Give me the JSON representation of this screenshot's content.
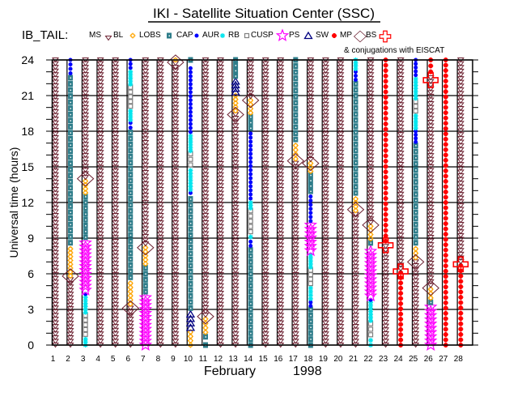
{
  "header": {
    "title": "IKI - Satellite Situation Center (SSC)",
    "satellite_label": "IB_TAIL:",
    "conjugation_note": "& conjugations with EISCAT"
  },
  "legend": [
    {
      "key": "MS",
      "label": "MS",
      "icon": "triangle-down-icon",
      "color": "#6b1f2f"
    },
    {
      "key": "BL",
      "label": "BL",
      "icon": "sun-icon",
      "color": "#ffa500"
    },
    {
      "key": "LOBS",
      "label": "LOBS",
      "icon": "filled-square-icon",
      "color": "#2e7d8a"
    },
    {
      "key": "CAP",
      "label": "CAP",
      "icon": "dot-icon",
      "color": "#0000ff"
    },
    {
      "key": "AUR",
      "label": "AUR",
      "icon": "asterisk-icon",
      "color": "#00e5ee"
    },
    {
      "key": "RB",
      "label": "RB",
      "icon": "open-square-icon",
      "color": "#808080"
    },
    {
      "key": "CUSP",
      "label": "CUSP",
      "icon": "star-icon",
      "color": "#ff00ff"
    },
    {
      "key": "PS",
      "label": "PS",
      "icon": "triangle-up-icon",
      "color": "#000080"
    },
    {
      "key": "SW",
      "label": "SW",
      "icon": "splat-icon",
      "color": "#ff0000"
    },
    {
      "key": "MP",
      "label": "MP",
      "icon": "diamond-icon",
      "color": "#6b1f2f"
    },
    {
      "key": "BS",
      "label": "BS",
      "icon": "cross-icon",
      "color": "#ff0000"
    }
  ],
  "chart_data": {
    "type": "scatter",
    "title": "IKI - Satellite Situation Center (SSC)",
    "xlabel": "February",
    "xlabel_year": "1998",
    "ylabel": "Universal time (hours)",
    "xlim": [
      1,
      28
    ],
    "ylim": [
      0,
      24
    ],
    "x_ticks": [
      "1",
      "2",
      "3",
      "4",
      "5",
      "6",
      "7",
      "8",
      "9",
      "10",
      "11",
      "12",
      "13",
      "14",
      "15",
      "16",
      "17",
      "18",
      "19",
      "20",
      "21",
      "22",
      "23",
      "24",
      "25",
      "26",
      "27",
      "28"
    ],
    "y_ticks": [
      "0",
      "3",
      "6",
      "9",
      "12",
      "15",
      "18",
      "21",
      "24"
    ],
    "grid": true,
    "days": [
      {
        "day": 1,
        "segments": [
          {
            "type": "MS",
            "from": 0,
            "to": 24
          }
        ],
        "events": []
      },
      {
        "day": 2,
        "segments": [
          {
            "type": "MS",
            "from": 0,
            "to": 5.5
          },
          {
            "type": "BL",
            "from": 5.5,
            "to": 8.1
          },
          {
            "type": "LOBS",
            "from": 8.1,
            "to": 22.5
          },
          {
            "type": "CAP",
            "from": 22.5,
            "to": 24
          }
        ],
        "events": [
          {
            "type": "MP",
            "hour": 5.8
          }
        ]
      },
      {
        "day": 3,
        "segments": [
          {
            "type": "AUR",
            "from": 0,
            "to": 0.5
          },
          {
            "type": "RB",
            "from": 0.5,
            "to": 2.5
          },
          {
            "type": "AUR",
            "from": 2.5,
            "to": 4.0
          },
          {
            "type": "CAP",
            "from": 4.0,
            "to": 4.3
          },
          {
            "type": "CUSP",
            "from": 4.3,
            "to": 8.6
          },
          {
            "type": "LOBS",
            "from": 8.6,
            "to": 12.5
          },
          {
            "type": "BL",
            "from": 12.5,
            "to": 13.8
          },
          {
            "type": "MS",
            "from": 13.8,
            "to": 24
          }
        ],
        "events": [
          {
            "type": "MP",
            "hour": 14
          }
        ]
      },
      {
        "day": 4,
        "segments": [
          {
            "type": "MS",
            "from": 0,
            "to": 24
          }
        ],
        "events": []
      },
      {
        "day": 5,
        "segments": [
          {
            "type": "MS",
            "from": 0,
            "to": 24
          }
        ],
        "events": []
      },
      {
        "day": 6,
        "segments": [
          {
            "type": "MS",
            "from": 0,
            "to": 3.1
          },
          {
            "type": "BL",
            "from": 3.1,
            "to": 5.2
          },
          {
            "type": "LOBS",
            "from": 5.2,
            "to": 17.9
          },
          {
            "type": "CAP",
            "from": 17.9,
            "to": 18.7
          },
          {
            "type": "AUR",
            "from": 18.7,
            "to": 19.7
          },
          {
            "type": "RB",
            "from": 19.7,
            "to": 21.7
          },
          {
            "type": "AUR",
            "from": 21.7,
            "to": 23
          },
          {
            "type": "CAP",
            "from": 23,
            "to": 24
          }
        ],
        "events": [
          {
            "type": "MP",
            "hour": 3.1
          }
        ]
      },
      {
        "day": 7,
        "segments": [
          {
            "type": "CUSP",
            "from": 0,
            "to": 4
          },
          {
            "type": "LOBS",
            "from": 4,
            "to": 6.5
          },
          {
            "type": "BL",
            "from": 6.5,
            "to": 8.2
          },
          {
            "type": "MS",
            "from": 8.2,
            "to": 24
          }
        ],
        "events": [
          {
            "type": "MP",
            "hour": 8.2
          }
        ]
      },
      {
        "day": 8,
        "segments": [
          {
            "type": "MS",
            "from": 0,
            "to": 24
          }
        ],
        "events": []
      },
      {
        "day": 9,
        "segments": [
          {
            "type": "MS",
            "from": 0,
            "to": 23.7
          },
          {
            "type": "BL",
            "from": 23.7,
            "to": 24
          }
        ],
        "events": [
          {
            "type": "MP",
            "hour": 23.8
          }
        ]
      },
      {
        "day": 10,
        "segments": [
          {
            "type": "BL",
            "from": 0,
            "to": 1.1
          },
          {
            "type": "PS",
            "from": 1.1,
            "to": 2.6
          },
          {
            "type": "LOBS",
            "from": 2.6,
            "to": 12.3
          },
          {
            "type": "CAP",
            "from": 12.3,
            "to": 12.8
          },
          {
            "type": "AUR",
            "from": 12.8,
            "to": 14.7
          },
          {
            "type": "RB",
            "from": 14.7,
            "to": 16.1
          },
          {
            "type": "AUR",
            "from": 16.1,
            "to": 17.6
          },
          {
            "type": "CAP",
            "from": 17.6,
            "to": 23.3
          },
          {
            "type": "LOBS",
            "from": 23.3,
            "to": 24
          }
        ],
        "events": []
      },
      {
        "day": 11,
        "segments": [
          {
            "type": "LOBS",
            "from": 0,
            "to": 0.7
          },
          {
            "type": "BL",
            "from": 0.7,
            "to": 2.2
          },
          {
            "type": "MS",
            "from": 2.2,
            "to": 24
          }
        ],
        "events": [
          {
            "type": "MP",
            "hour": 2.4
          }
        ]
      },
      {
        "day": 12,
        "segments": [
          {
            "type": "MS",
            "from": 0,
            "to": 24
          }
        ],
        "events": []
      },
      {
        "day": 13,
        "segments": [
          {
            "type": "MS",
            "from": 0,
            "to": 19.4
          },
          {
            "type": "BL",
            "from": 19.4,
            "to": 21
          },
          {
            "type": "PS",
            "from": 21,
            "to": 22.2
          },
          {
            "type": "LOBS",
            "from": 22.2,
            "to": 24
          }
        ],
        "events": [
          {
            "type": "MP",
            "hour": 19.4
          }
        ]
      },
      {
        "day": 14,
        "segments": [
          {
            "type": "LOBS",
            "from": 0,
            "to": 8
          },
          {
            "type": "CAP",
            "from": 8,
            "to": 8.7
          },
          {
            "type": "AUR",
            "from": 8.7,
            "to": 9.1
          },
          {
            "type": "RB",
            "from": 9.1,
            "to": 11.3
          },
          {
            "type": "AUR",
            "from": 11.3,
            "to": 12
          },
          {
            "type": "CAP",
            "from": 12,
            "to": 17.8
          },
          {
            "type": "LOBS",
            "from": 17.8,
            "to": 19.2
          },
          {
            "type": "BL",
            "from": 19.2,
            "to": 20.6
          },
          {
            "type": "MS",
            "from": 20.6,
            "to": 24
          }
        ],
        "events": [
          {
            "type": "MP",
            "hour": 20.6
          }
        ]
      },
      {
        "day": 15,
        "segments": [
          {
            "type": "MS",
            "from": 0,
            "to": 24
          }
        ],
        "events": []
      },
      {
        "day": 16,
        "segments": [
          {
            "type": "MS",
            "from": 0,
            "to": 24
          }
        ],
        "events": []
      },
      {
        "day": 17,
        "segments": [
          {
            "type": "MS",
            "from": 0,
            "to": 15.3
          },
          {
            "type": "BL",
            "from": 15.3,
            "to": 16.8
          },
          {
            "type": "LOBS",
            "from": 16.8,
            "to": 24
          }
        ],
        "events": [
          {
            "type": "MP",
            "hour": 15.5
          }
        ]
      },
      {
        "day": 18,
        "segments": [
          {
            "type": "LOBS",
            "from": 0,
            "to": 3
          },
          {
            "type": "CAP",
            "from": 3,
            "to": 3.6
          },
          {
            "type": "AUR",
            "from": 3.6,
            "to": 4.8
          },
          {
            "type": "RB",
            "from": 4.8,
            "to": 6.3
          },
          {
            "type": "AUR",
            "from": 6.3,
            "to": 7.6
          },
          {
            "type": "CUSP",
            "from": 7.6,
            "to": 10.1
          },
          {
            "type": "CAP",
            "from": 10.1,
            "to": 12.5
          },
          {
            "type": "LOBS",
            "from": 12.5,
            "to": 14.3
          },
          {
            "type": "BL",
            "from": 14.3,
            "to": 15.3
          },
          {
            "type": "MS",
            "from": 15.3,
            "to": 24
          }
        ],
        "events": [
          {
            "type": "MP",
            "hour": 15.3
          }
        ]
      },
      {
        "day": 19,
        "segments": [
          {
            "type": "MS",
            "from": 0,
            "to": 24
          }
        ],
        "events": []
      },
      {
        "day": 20,
        "segments": [
          {
            "type": "MS",
            "from": 0,
            "to": 24
          }
        ],
        "events": []
      },
      {
        "day": 21,
        "segments": [
          {
            "type": "MS",
            "from": 0,
            "to": 11
          },
          {
            "type": "BL",
            "from": 11,
            "to": 12.3
          },
          {
            "type": "LOBS",
            "from": 12.3,
            "to": 22
          },
          {
            "type": "CAP",
            "from": 22,
            "to": 23
          },
          {
            "type": "AUR",
            "from": 23,
            "to": 24
          }
        ],
        "events": [
          {
            "type": "MP",
            "hour": 11.4
          }
        ]
      },
      {
        "day": 22,
        "segments": [
          {
            "type": "AUR",
            "from": 0,
            "to": 0.4
          },
          {
            "type": "RB",
            "from": 0.4,
            "to": 1.8
          },
          {
            "type": "AUR",
            "from": 1.8,
            "to": 3.6
          },
          {
            "type": "CAP",
            "from": 3.6,
            "to": 3.8
          },
          {
            "type": "CUSP",
            "from": 3.8,
            "to": 7.9
          },
          {
            "type": "LOBS",
            "from": 7.9,
            "to": 8.6
          },
          {
            "type": "BL",
            "from": 8.6,
            "to": 10
          },
          {
            "type": "MS",
            "from": 10,
            "to": 24
          }
        ],
        "events": [
          {
            "type": "MP",
            "hour": 10.1
          }
        ]
      },
      {
        "day": 23,
        "segments": [
          {
            "type": "MS",
            "from": 0,
            "to": 8.3
          },
          {
            "type": "SW",
            "from": 8.3,
            "to": 24
          }
        ],
        "events": [
          {
            "type": "BS",
            "hour": 8.4
          }
        ]
      },
      {
        "day": 24,
        "segments": [
          {
            "type": "SW",
            "from": 0,
            "to": 6.1
          },
          {
            "type": "MS",
            "from": 6.1,
            "to": 24
          }
        ],
        "events": [
          {
            "type": "BS",
            "hour": 6.2
          }
        ]
      },
      {
        "day": 25,
        "segments": [
          {
            "type": "MS",
            "from": 0,
            "to": 7
          },
          {
            "type": "BL",
            "from": 7,
            "to": 8.1
          },
          {
            "type": "LOBS",
            "from": 8.1,
            "to": 16.8
          },
          {
            "type": "CAP",
            "from": 16.8,
            "to": 18
          },
          {
            "type": "AUR",
            "from": 18,
            "to": 19.3
          },
          {
            "type": "RB",
            "from": 19.3,
            "to": 20.5
          },
          {
            "type": "AUR",
            "from": 20.5,
            "to": 22.4
          },
          {
            "type": "CAP",
            "from": 22.4,
            "to": 24
          }
        ],
        "events": [
          {
            "type": "MP",
            "hour": 7.0
          }
        ]
      },
      {
        "day": 26,
        "segments": [
          {
            "type": "CUSP",
            "from": 0,
            "to": 3.2
          },
          {
            "type": "LOBS",
            "from": 3.2,
            "to": 3.6
          },
          {
            "type": "BL",
            "from": 3.6,
            "to": 4.7
          },
          {
            "type": "MS",
            "from": 4.7,
            "to": 22.5
          },
          {
            "type": "SW",
            "from": 22.5,
            "to": 24
          }
        ],
        "events": [
          {
            "type": "MP",
            "hour": 4.8
          },
          {
            "type": "BS",
            "hour": 22.3
          }
        ]
      },
      {
        "day": 27,
        "segments": [
          {
            "type": "SW",
            "from": 0,
            "to": 24
          }
        ],
        "events": []
      },
      {
        "day": 28,
        "segments": [
          {
            "type": "SW",
            "from": 0,
            "to": 6.7
          },
          {
            "type": "MS",
            "from": 6.7,
            "to": 24
          }
        ],
        "events": [
          {
            "type": "BS",
            "hour": 6.8
          }
        ]
      }
    ]
  }
}
